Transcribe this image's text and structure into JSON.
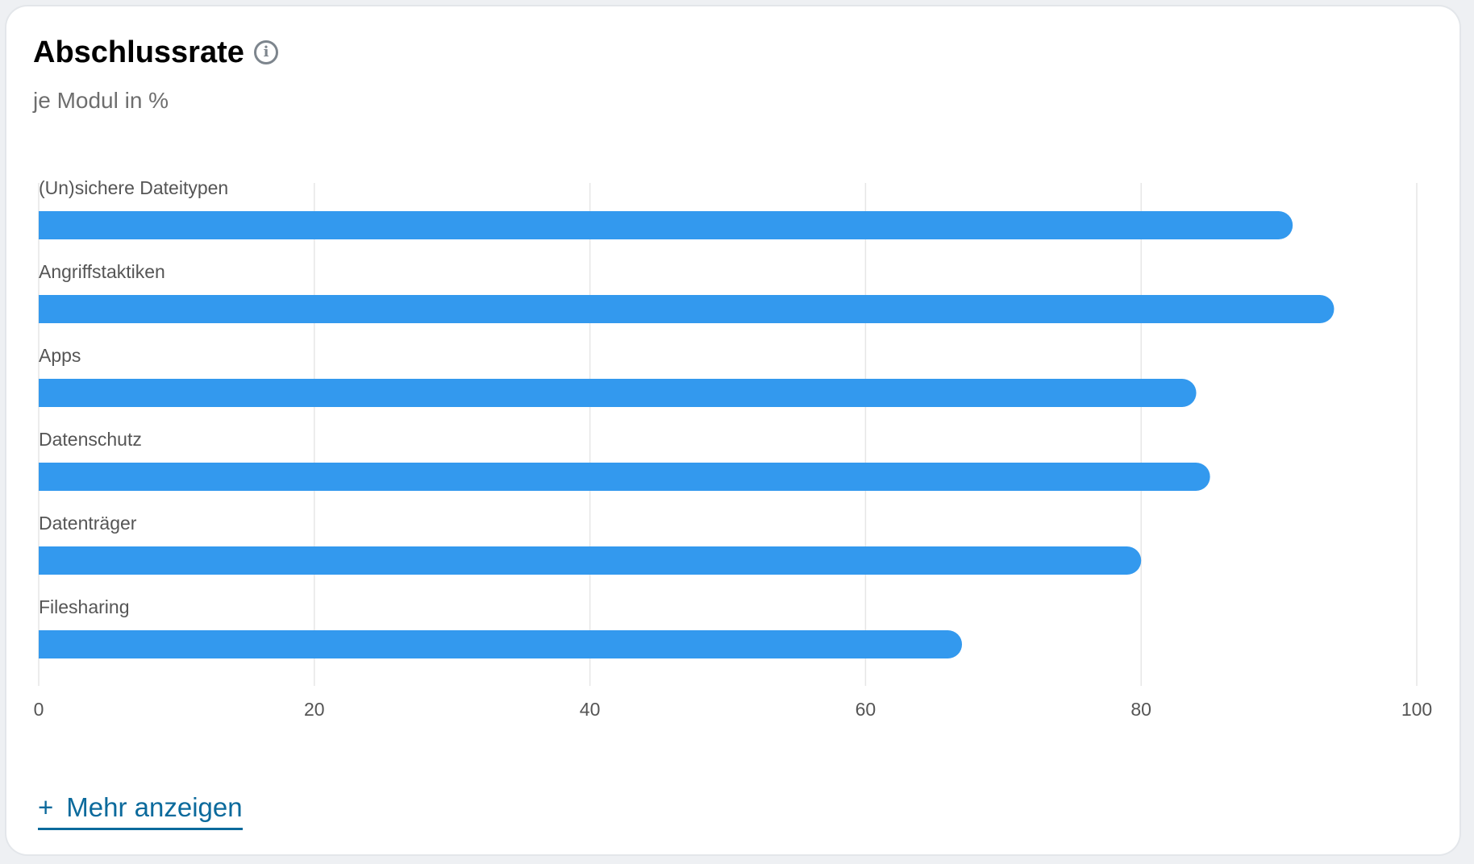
{
  "card": {
    "title": "Abschlussrate",
    "info_icon": "info-circle-icon",
    "subtitle": "je Modul in %",
    "more_icon": "plus-icon",
    "more_plus": "+",
    "more_label": "Mehr anzeigen",
    "more_color": "#0b6a9c"
  },
  "chart_data": {
    "type": "bar",
    "orientation": "horizontal",
    "categories": [
      "(Un)sichere Dateitypen",
      "Angriffstaktiken",
      "Apps",
      "Datenschutz",
      "Datenträger",
      "Filesharing"
    ],
    "values": [
      91,
      94,
      84,
      85,
      80,
      67
    ],
    "xlim": [
      0,
      100
    ],
    "xticks": [
      "0",
      "20",
      "40",
      "60",
      "80",
      "100"
    ],
    "grid": "vertical",
    "bar_color": "#3399ee",
    "title": "Abschlussrate",
    "subtitle": "je Modul in %"
  }
}
